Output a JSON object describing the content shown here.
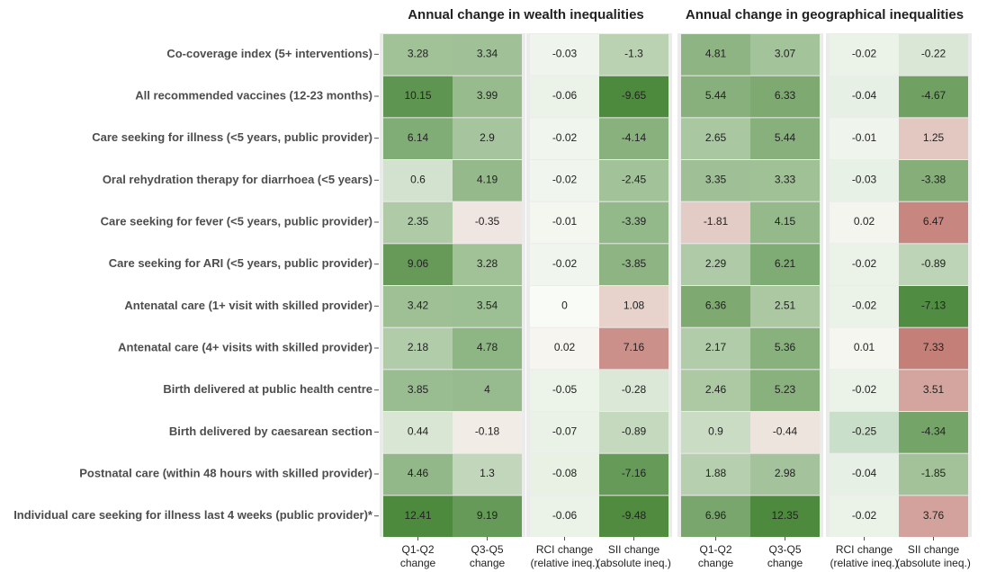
{
  "chart_data": {
    "type": "heatmap",
    "categories": [
      "Co-coverage index (5+ interventions)",
      "All recommended vaccines (12-23 months)",
      "Care seeking for illness (<5 years, public provider)",
      "Oral rehydration therapy for diarrhoea (<5 years)",
      "Care seeking for fever (<5 years, public provider)",
      "Care seeking for ARI (<5 years, public provider)",
      "Antenatal care (1+ visit with skilled provider)",
      "Antenatal care (4+ visits with skilled provider)",
      "Birth delivered at public health centre",
      "Birth delivered by caesarean section",
      "Postnatal care (within 48 hours with skilled provider)",
      "Individual care seeking for illness last 4 weeks (public provider)*"
    ],
    "groups": [
      {
        "title": "Annual change in wealth inequalities",
        "series": [
          {
            "name": "Q1-Q2 change",
            "positive_color": "#4e8a3e",
            "negative_color": "#c47f78",
            "values": [
              3.28,
              10.15,
              6.14,
              0.6,
              2.35,
              9.06,
              3.42,
              2.18,
              3.85,
              0.44,
              4.46,
              12.41
            ]
          },
          {
            "name": "Q3-Q5 change",
            "positive_color": "#4e8a3e",
            "negative_color": "#c47f78",
            "values": [
              3.34,
              3.99,
              2.9,
              4.19,
              -0.35,
              3.28,
              3.54,
              4.78,
              4,
              -0.18,
              1.3,
              9.19
            ]
          },
          {
            "name": "RCI change (relative ineq.)",
            "positive_color": "#c47f78",
            "negative_color": "#4e8a3e",
            "values": [
              -0.03,
              -0.06,
              -0.02,
              -0.02,
              -0.01,
              -0.02,
              0,
              0.02,
              -0.05,
              -0.07,
              -0.08,
              -0.06
            ]
          },
          {
            "name": "SII change (absolute ineq.)",
            "positive_color": "#c47f78",
            "negative_color": "#4e8a3e",
            "values": [
              -1.3,
              -9.65,
              -4.14,
              -2.45,
              -3.39,
              -3.85,
              1.08,
              7.16,
              -0.28,
              -0.89,
              -7.16,
              -9.48
            ]
          }
        ]
      },
      {
        "title": "Annual change in geographical inequalities",
        "series": [
          {
            "name": "Q1-Q2 change",
            "positive_color": "#4e8a3e",
            "negative_color": "#c47f78",
            "values": [
              4.81,
              5.44,
              2.65,
              3.35,
              -1.81,
              2.29,
              6.36,
              2.17,
              2.46,
              0.9,
              1.88,
              6.96
            ]
          },
          {
            "name": "Q3-Q5 change",
            "positive_color": "#4e8a3e",
            "negative_color": "#c47f78",
            "values": [
              3.07,
              6.33,
              5.44,
              3.33,
              4.15,
              6.21,
              2.51,
              5.36,
              5.23,
              -0.44,
              2.98,
              12.35
            ]
          },
          {
            "name": "RCI change (relative ineq.)",
            "positive_color": "#c47f78",
            "negative_color": "#006400",
            "values": [
              -0.02,
              -0.04,
              -0.01,
              -0.03,
              0.02,
              -0.02,
              -0.02,
              0.01,
              -0.02,
              -0.25,
              -0.04,
              -0.02
            ]
          },
          {
            "name": "SII change (absolute ineq.)",
            "positive_color": "#c47f78",
            "negative_color": "#4e8a3e",
            "values": [
              -0.22,
              -4.67,
              1.25,
              -3.38,
              6.47,
              -0.89,
              -7.13,
              7.33,
              3.51,
              -4.34,
              -1.85,
              3.76
            ]
          }
        ]
      }
    ]
  }
}
